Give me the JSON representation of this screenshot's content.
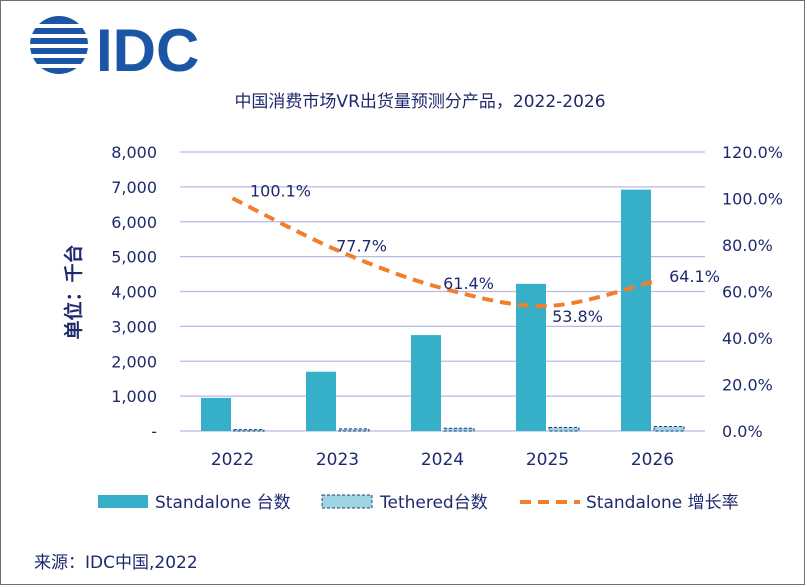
{
  "logo": {
    "text": "IDC",
    "color": "#1b56a6"
  },
  "source": "来源：IDC中国,2022",
  "chart_data": {
    "type": "bar",
    "title": "中国消费市场VR出货量预测分产品，2022-2026",
    "ylabel": "单位：千台",
    "categories": [
      "2022",
      "2023",
      "2024",
      "2025",
      "2026"
    ],
    "ylim": [
      0,
      8000
    ],
    "y2lim": [
      0,
      120
    ],
    "y_ticks": [
      "-",
      "1,000",
      "2,000",
      "3,000",
      "4,000",
      "5,000",
      "6,000",
      "7,000",
      "8,000"
    ],
    "y2_ticks": [
      "0.0%",
      "20.0%",
      "40.0%",
      "60.0%",
      "80.0%",
      "100.0%",
      "120.0%"
    ],
    "grid": true,
    "legend_position": "bottom",
    "series": [
      {
        "name": "Standalone 台数",
        "type": "bar",
        "color": "#36afc9",
        "values": [
          950,
          1700,
          2750,
          4220,
          6920
        ]
      },
      {
        "name": "Tethered台数",
        "type": "bar",
        "color": "#9dd3e3",
        "values": [
          40,
          60,
          80,
          100,
          130
        ]
      },
      {
        "name": "Standalone 增长率",
        "type": "line",
        "axis": "right",
        "color": "#f07e2c",
        "values": [
          100.1,
          77.7,
          61.4,
          53.8,
          64.1
        ],
        "labels": [
          "100.1%",
          "77.7%",
          "61.4%",
          "53.8%",
          "64.1%"
        ]
      }
    ]
  }
}
